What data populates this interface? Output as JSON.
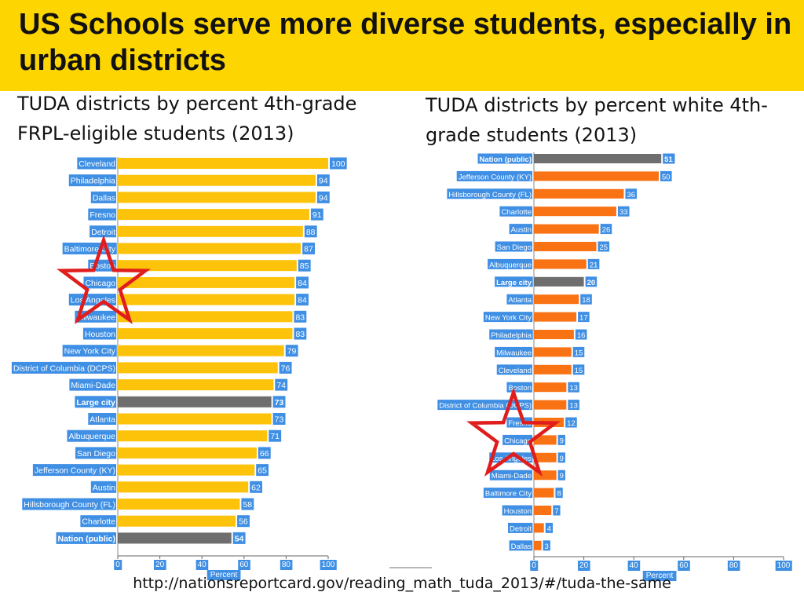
{
  "title": "US Schools serve more diverse students, especially in urban districts",
  "subtitle_left": "TUDA districts by percent 4th-grade FRPL-eligible students (2013)",
  "subtitle_right": "TUDA districts by percent white 4th-grade students (2013)",
  "source_url": "http://nationsreportcard.gov/reading_math_tuda_2013/#/tuda-the-same",
  "colors": {
    "banner": "#fdd500",
    "left_bar": "#fdc20a",
    "right_bar": "#f97214",
    "reference_bar": "#6e6e6e",
    "label_bg": "#3f8fe4",
    "star": "#e01d1d"
  },
  "chart_data": [
    {
      "type": "bar",
      "orientation": "horizontal",
      "title": "TUDA districts by percent 4th-grade FRPL-eligible students (2013)",
      "xlabel": "Percent",
      "xlim": [
        0,
        100
      ],
      "xticks": [
        "0",
        "20",
        "40",
        "60",
        "80",
        "100"
      ],
      "categories": [
        "Cleveland",
        "Philadelphia",
        "Dallas",
        "Fresno",
        "Detroit",
        "Baltimore City",
        "Boston",
        "Chicago",
        "Los Angeles",
        "Milwaukee",
        "Houston",
        "New York City",
        "District of Columbia (DCPS)",
        "Miami-Dade",
        "Large city",
        "Atlanta",
        "Albuquerque",
        "San Diego",
        "Jefferson County (KY)",
        "Austin",
        "Hillsborough County (FL)",
        "Charlotte",
        "Nation (public)"
      ],
      "values": [
        100,
        94,
        94,
        91,
        88,
        87,
        85,
        84,
        84,
        83,
        83,
        79,
        76,
        74,
        73,
        73,
        71,
        66,
        65,
        62,
        58,
        56,
        54
      ],
      "reference_categories": [
        "Large city",
        "Nation (public)"
      ],
      "highlight": "Chicago"
    },
    {
      "type": "bar",
      "orientation": "horizontal",
      "title": "TUDA districts by percent white 4th-grade students (2013)",
      "xlabel": "Percent",
      "xlim": [
        0,
        100
      ],
      "xticks": [
        "0",
        "20",
        "40",
        "60",
        "80",
        "100"
      ],
      "categories": [
        "Nation (public)",
        "Jefferson County (KY)",
        "Hillsborough County (FL)",
        "Charlotte",
        "Austin",
        "San Diego",
        "Albuquerque",
        "Large city",
        "Atlanta",
        "New York City",
        "Philadelphia",
        "Milwaukee",
        "Cleveland",
        "Boston",
        "District of Columbia (DCPS)",
        "Fresno",
        "Chicago",
        "Los Angeles",
        "Miami-Dade",
        "Baltimore City",
        "Houston",
        "Detroit",
        "Dallas"
      ],
      "values": [
        51,
        50,
        36,
        33,
        26,
        25,
        21,
        20,
        18,
        17,
        16,
        15,
        15,
        13,
        13,
        12,
        9,
        9,
        9,
        8,
        7,
        4,
        3
      ],
      "reference_categories": [
        "Nation (public)",
        "Large city"
      ],
      "highlight": "Chicago"
    }
  ]
}
